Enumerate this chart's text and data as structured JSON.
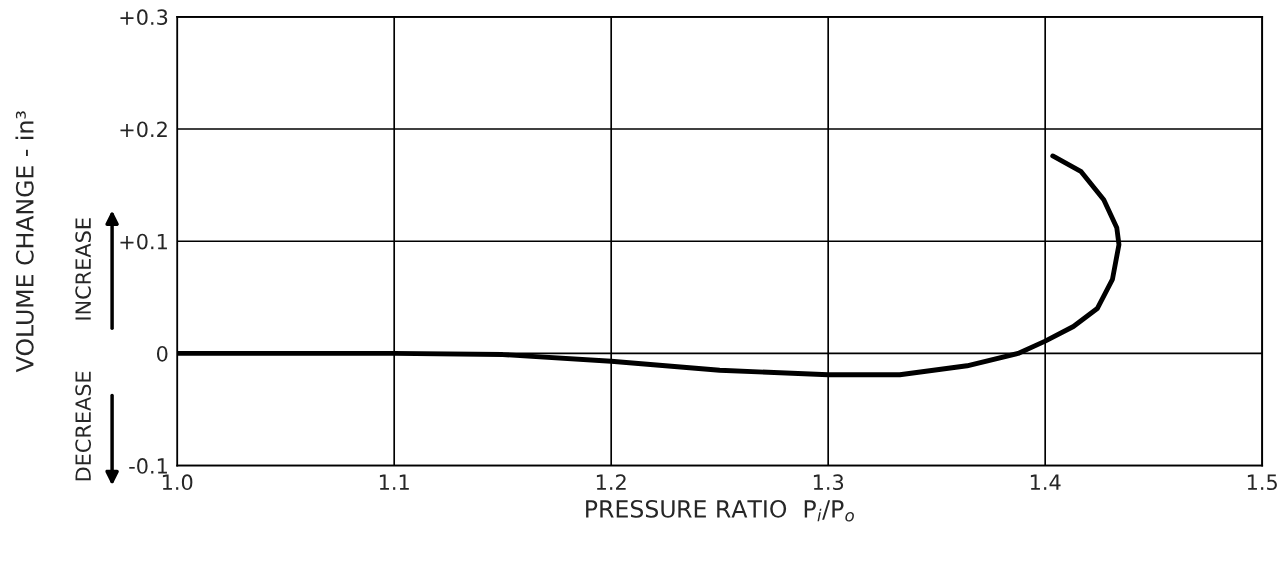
{
  "chart_data": {
    "type": "line",
    "xlabel": "PRESSURE RATIO  P$_{i}$/P$_{o}$",
    "ylabel": "VOLUME CHANGE - in³",
    "annotations": [
      "INCREASE",
      "DECREASE"
    ],
    "series": [
      {
        "color": "#000000",
        "x": [
          1.0,
          1.05,
          1.1,
          1.15,
          1.2,
          1.25,
          1.3,
          1.333,
          1.364,
          1.3875,
          1.4,
          1.413,
          1.424,
          1.431,
          1.434,
          1.433,
          1.427,
          1.4166,
          1.4035
        ],
        "values": [
          0,
          0,
          0,
          -0.001,
          -0.007,
          -0.015,
          -0.019,
          -0.019,
          -0.011,
          0,
          0.011,
          0.024,
          0.04,
          0.066,
          0.097,
          0.112,
          0.137,
          0.162,
          0.176
        ]
      }
    ],
    "xlim": [
      1.0,
      1.5
    ],
    "ylim": [
      -0.1,
      0.3
    ],
    "xticks": [
      {
        "value": 1.0,
        "label": "1.0"
      },
      1.1,
      1.2,
      1.3,
      1.4,
      1.5
    ],
    "yticks": [
      -0.1,
      0,
      {
        "value": 0.1,
        "label": "+0.1"
      },
      {
        "value": 0.2,
        "label": "+0.2"
      },
      {
        "value": 0.3,
        "label": "+0.3"
      }
    ],
    "grid": true,
    "marker": "none",
    "line_style": "solid"
  }
}
